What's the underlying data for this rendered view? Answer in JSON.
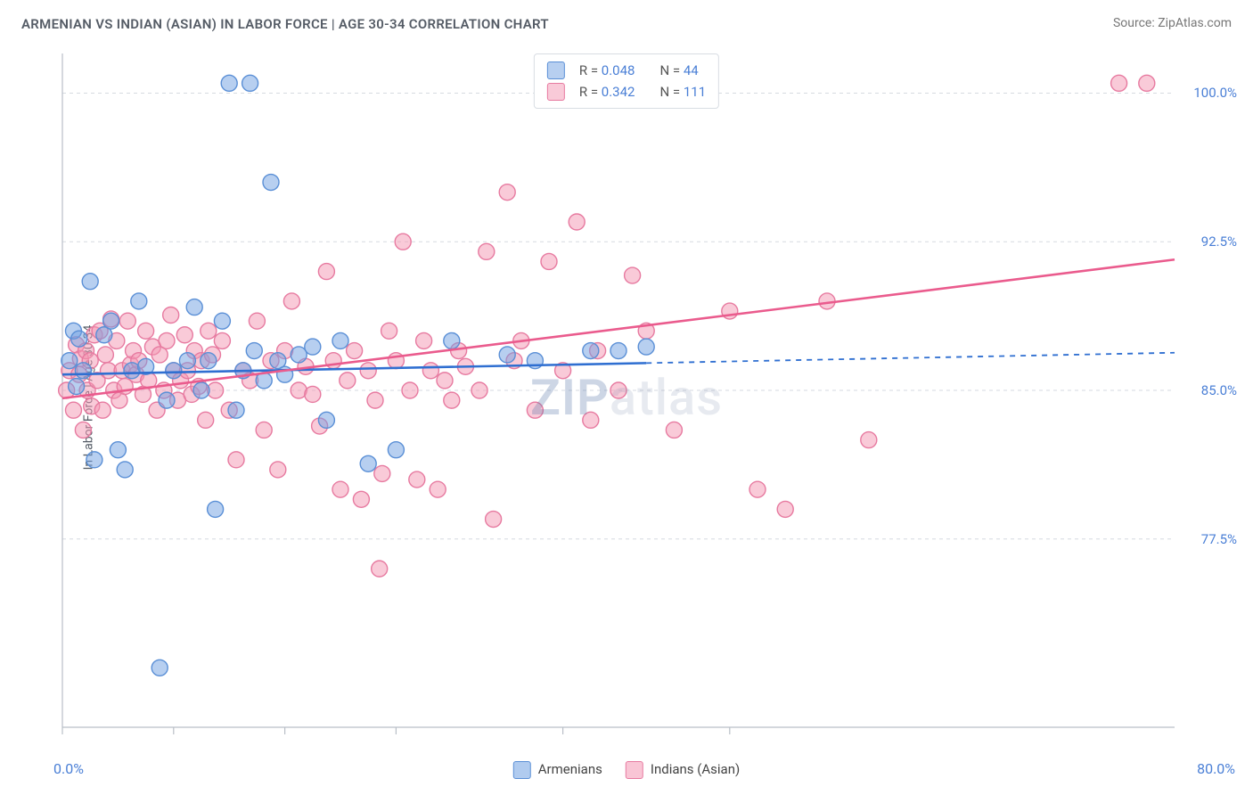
{
  "title": "ARMENIAN VS INDIAN (ASIAN) IN LABOR FORCE | AGE 30-34 CORRELATION CHART",
  "source": "Source: ZipAtlas.com",
  "watermark": "ZIPatlas",
  "y_axis_label": "In Labor Force | Age 30-34",
  "chart": {
    "type": "scatter",
    "xlim": [
      0,
      80
    ],
    "ylim": [
      68,
      102
    ],
    "x_min_label": "0.0%",
    "x_max_label": "80.0%",
    "y_ticks": [
      77.5,
      85.0,
      92.5,
      100.0
    ],
    "y_tick_labels": [
      "77.5%",
      "85.0%",
      "92.5%",
      "100.0%"
    ],
    "x_ticks": [
      0,
      8,
      16,
      24,
      36,
      48
    ],
    "background_color": "#ffffff",
    "grid_color": "#d6dae0",
    "grid_dash": "4,4",
    "axis_color": "#b9bfc7",
    "marker_radius": 9,
    "marker_stroke_width": 1.4,
    "trend_line_width": 2.6,
    "series": [
      {
        "name": "Armenians",
        "fill": "rgba(111,160,226,0.50)",
        "stroke": "#5a8fd6",
        "line_color": "#2f6fd1",
        "r_value": "0.048",
        "n_value": "44",
        "trend": {
          "x1": 0,
          "y1": 85.8,
          "x2": 80,
          "y2": 86.9,
          "solid_until_x": 42
        },
        "points": [
          [
            0.5,
            86.5
          ],
          [
            0.8,
            88.0
          ],
          [
            1.0,
            85.2
          ],
          [
            1.2,
            87.6
          ],
          [
            1.5,
            86.0
          ],
          [
            2.0,
            90.5
          ],
          [
            2.3,
            81.5
          ],
          [
            3.0,
            87.8
          ],
          [
            3.5,
            88.5
          ],
          [
            4.0,
            82.0
          ],
          [
            4.5,
            81.0
          ],
          [
            5.0,
            86.0
          ],
          [
            5.5,
            89.5
          ],
          [
            6.0,
            86.2
          ],
          [
            7.0,
            71.0
          ],
          [
            7.5,
            84.5
          ],
          [
            8.0,
            86.0
          ],
          [
            9.0,
            86.5
          ],
          [
            9.5,
            89.2
          ],
          [
            10.0,
            85.0
          ],
          [
            10.5,
            86.5
          ],
          [
            11.0,
            79.0
          ],
          [
            11.5,
            88.5
          ],
          [
            12.0,
            100.5
          ],
          [
            13.5,
            100.5
          ],
          [
            12.5,
            84.0
          ],
          [
            13.0,
            86.0
          ],
          [
            13.8,
            87.0
          ],
          [
            14.5,
            85.5
          ],
          [
            15.0,
            95.5
          ],
          [
            15.5,
            86.5
          ],
          [
            16.0,
            85.8
          ],
          [
            17.0,
            86.8
          ],
          [
            18.0,
            87.2
          ],
          [
            19.0,
            83.5
          ],
          [
            20.0,
            87.5
          ],
          [
            22.0,
            81.3
          ],
          [
            24.0,
            82.0
          ],
          [
            28.0,
            87.5
          ],
          [
            32.0,
            86.8
          ],
          [
            34.0,
            86.5
          ],
          [
            38.0,
            87.0
          ],
          [
            40.0,
            87.0
          ],
          [
            42.0,
            87.2
          ]
        ]
      },
      {
        "name": "Indians (Asian)",
        "fill": "rgba(244,149,178,0.50)",
        "stroke": "#e77aa0",
        "line_color": "#ea5b8d",
        "r_value": "0.342",
        "n_value": "111",
        "trend": {
          "x1": 0,
          "y1": 84.6,
          "x2": 80,
          "y2": 91.6,
          "solid_until_x": 80
        },
        "points": [
          [
            0.3,
            85.0
          ],
          [
            0.5,
            86.0
          ],
          [
            0.8,
            84.0
          ],
          [
            1.0,
            87.3
          ],
          [
            1.2,
            85.8
          ],
          [
            1.3,
            86.6
          ],
          [
            1.5,
            83.0
          ],
          [
            1.7,
            87.0
          ],
          [
            1.8,
            85.0
          ],
          [
            2.0,
            86.5
          ],
          [
            2.1,
            84.2
          ],
          [
            2.3,
            87.8
          ],
          [
            2.5,
            85.5
          ],
          [
            2.7,
            88.0
          ],
          [
            2.9,
            84.0
          ],
          [
            3.1,
            86.8
          ],
          [
            3.3,
            86.0
          ],
          [
            3.5,
            88.6
          ],
          [
            3.7,
            85.0
          ],
          [
            3.9,
            87.5
          ],
          [
            4.1,
            84.5
          ],
          [
            4.3,
            86.0
          ],
          [
            4.5,
            85.2
          ],
          [
            4.7,
            88.5
          ],
          [
            4.9,
            86.3
          ],
          [
            5.1,
            87.0
          ],
          [
            5.3,
            85.8
          ],
          [
            5.5,
            86.5
          ],
          [
            5.8,
            84.8
          ],
          [
            6.0,
            88.0
          ],
          [
            6.2,
            85.5
          ],
          [
            6.5,
            87.2
          ],
          [
            6.8,
            84.0
          ],
          [
            7.0,
            86.8
          ],
          [
            7.3,
            85.0
          ],
          [
            7.5,
            87.5
          ],
          [
            7.8,
            88.8
          ],
          [
            8.0,
            86.0
          ],
          [
            8.3,
            84.5
          ],
          [
            8.5,
            85.5
          ],
          [
            8.8,
            87.8
          ],
          [
            9.0,
            86.0
          ],
          [
            9.3,
            84.8
          ],
          [
            9.5,
            87.0
          ],
          [
            9.8,
            85.2
          ],
          [
            10.0,
            86.5
          ],
          [
            10.3,
            83.5
          ],
          [
            10.5,
            88.0
          ],
          [
            10.8,
            86.8
          ],
          [
            11.0,
            85.0
          ],
          [
            11.5,
            87.5
          ],
          [
            12.0,
            84.0
          ],
          [
            12.5,
            81.5
          ],
          [
            13.0,
            86.0
          ],
          [
            13.5,
            85.5
          ],
          [
            14.0,
            88.5
          ],
          [
            14.5,
            83.0
          ],
          [
            15.0,
            86.5
          ],
          [
            15.5,
            81.0
          ],
          [
            16.0,
            87.0
          ],
          [
            16.5,
            89.5
          ],
          [
            17.0,
            85.0
          ],
          [
            17.5,
            86.2
          ],
          [
            18.0,
            84.8
          ],
          [
            18.5,
            83.2
          ],
          [
            19.0,
            91.0
          ],
          [
            19.5,
            86.5
          ],
          [
            20.0,
            80.0
          ],
          [
            20.5,
            85.5
          ],
          [
            21.0,
            87.0
          ],
          [
            21.5,
            79.5
          ],
          [
            22.0,
            86.0
          ],
          [
            22.5,
            84.5
          ],
          [
            22.8,
            76.0
          ],
          [
            23.0,
            80.8
          ],
          [
            23.5,
            88.0
          ],
          [
            24.0,
            86.5
          ],
          [
            24.5,
            92.5
          ],
          [
            25.0,
            85.0
          ],
          [
            25.5,
            80.5
          ],
          [
            26.0,
            87.5
          ],
          [
            26.5,
            86.0
          ],
          [
            27.0,
            80.0
          ],
          [
            27.5,
            85.5
          ],
          [
            28.0,
            84.5
          ],
          [
            28.5,
            87.0
          ],
          [
            29.0,
            86.2
          ],
          [
            30.0,
            85.0
          ],
          [
            30.5,
            92.0
          ],
          [
            31.0,
            78.5
          ],
          [
            32.0,
            95.0
          ],
          [
            32.5,
            86.5
          ],
          [
            33.0,
            87.5
          ],
          [
            34.0,
            84.0
          ],
          [
            35.0,
            91.5
          ],
          [
            36.0,
            86.0
          ],
          [
            37.0,
            93.5
          ],
          [
            38.0,
            83.5
          ],
          [
            38.5,
            87.0
          ],
          [
            40.0,
            85.0
          ],
          [
            41.0,
            90.8
          ],
          [
            42.0,
            88.0
          ],
          [
            44.0,
            83.0
          ],
          [
            46.0,
            100.5
          ],
          [
            48.0,
            89.0
          ],
          [
            50.0,
            80.0
          ],
          [
            52.0,
            79.0
          ],
          [
            55.0,
            89.5
          ],
          [
            58.0,
            82.5
          ],
          [
            76.0,
            100.5
          ],
          [
            78.0,
            100.5
          ]
        ]
      }
    ],
    "bottom_legend": [
      {
        "label": "Armenians",
        "fill": "rgba(111,160,226,0.55)",
        "stroke": "#5a8fd6"
      },
      {
        "label": "Indians (Asian)",
        "fill": "rgba(244,149,178,0.55)",
        "stroke": "#e77aa0"
      }
    ]
  }
}
